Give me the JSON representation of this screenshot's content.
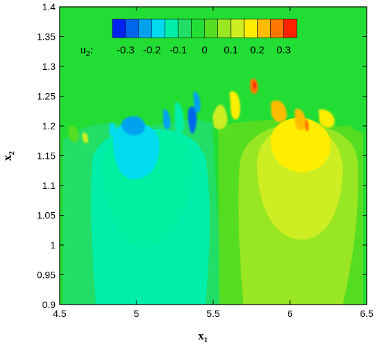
{
  "chart_data": {
    "type": "heatmap",
    "title": "",
    "xlabel": "x",
    "xlabel_sub": "1",
    "ylabel": "x",
    "ylabel_sub": "2",
    "xlim": [
      4.5,
      6.5
    ],
    "ylim": [
      0.9,
      1.4
    ],
    "xticks": [
      "4.5",
      "5",
      "5.5",
      "6",
      "6.5"
    ],
    "xtick_values": [
      4.5,
      5.0,
      5.5,
      6.0,
      6.5
    ],
    "yticks": [
      "0.9",
      "0.95",
      "1",
      "1.05",
      "1.1",
      "1.15",
      "1.2",
      "1.25",
      "1.3",
      "1.35",
      "1.4"
    ],
    "ytick_values": [
      0.9,
      0.95,
      1.0,
      1.05,
      1.1,
      1.15,
      1.2,
      1.25,
      1.3,
      1.35,
      1.4
    ],
    "grid": false,
    "background_color": "#22dd33",
    "colorbar": {
      "variable": "u",
      "variable_sub": "2",
      "suffix": ":",
      "placement": "top-center",
      "levels": [
        -0.35,
        -0.3,
        -0.25,
        -0.2,
        -0.15,
        -0.1,
        -0.05,
        0,
        0.05,
        0.1,
        0.15,
        0.2,
        0.25,
        0.3,
        0.35
      ],
      "colors": [
        "#0022ee",
        "#0066ee",
        "#00a2ee",
        "#00dcee",
        "#00eeaa",
        "#22dd66",
        "#22dd33",
        "#55dd22",
        "#99e622",
        "#ccee22",
        "#ffee00",
        "#ffbb00",
        "#ff7700",
        "#ff2200"
      ],
      "labels": [
        "-0.3",
        "-0.2",
        "-0.1",
        "0",
        "0.1",
        "0.2",
        "0.3"
      ],
      "label_values": [
        -0.3,
        -0.2,
        -0.1,
        0,
        0.1,
        0.2,
        0.3
      ]
    }
  }
}
